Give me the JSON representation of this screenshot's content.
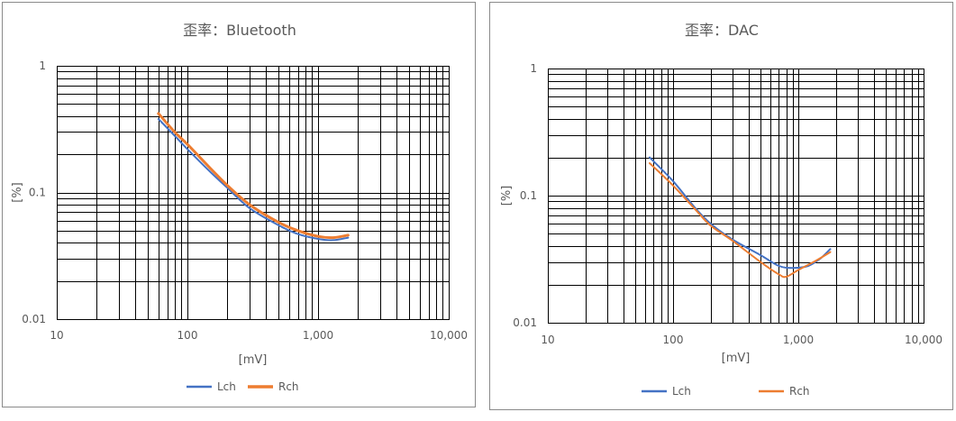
{
  "colors": {
    "lch": "#4472C4",
    "rch": "#ED7D31",
    "grid": "#000000",
    "text": "#595959"
  },
  "chart_data": [
    {
      "type": "line",
      "title": "歪率：Bluetooth",
      "xlabel": "[mV]",
      "ylabel": "[%]",
      "x_scale": "log",
      "y_scale": "log",
      "xlim": [
        10,
        10000
      ],
      "ylim": [
        0.01,
        1
      ],
      "x_tick_labels": [
        "10",
        "100",
        "1,000",
        "10,000"
      ],
      "y_tick_labels": [
        "0.01",
        "0.1",
        "1"
      ],
      "grid": true,
      "legend": "bottom",
      "series": [
        {
          "name": "Lch",
          "x": [
            60,
            80,
            100,
            150,
            200,
            300,
            500,
            700,
            1000,
            1300,
            1700
          ],
          "y": [
            0.38,
            0.28,
            0.22,
            0.145,
            0.11,
            0.075,
            0.055,
            0.047,
            0.043,
            0.042,
            0.044
          ]
        },
        {
          "name": "Rch",
          "x": [
            60,
            80,
            100,
            150,
            200,
            300,
            500,
            700,
            1000,
            1300,
            1700
          ],
          "y": [
            0.42,
            0.3,
            0.24,
            0.155,
            0.115,
            0.08,
            0.058,
            0.05,
            0.045,
            0.044,
            0.046
          ]
        }
      ]
    },
    {
      "type": "line",
      "title": "歪率：DAC",
      "xlabel": "[mV]",
      "ylabel": "[%]",
      "x_scale": "log",
      "y_scale": "log",
      "xlim": [
        10,
        10000
      ],
      "ylim": [
        0.01,
        1
      ],
      "x_tick_labels": [
        "10",
        "100",
        "1,000",
        "10,000"
      ],
      "y_tick_labels": [
        "0.01",
        "0.1",
        "1"
      ],
      "grid": true,
      "legend": "bottom",
      "series": [
        {
          "name": "Lch",
          "x": [
            65,
            100,
            150,
            200,
            300,
            500,
            700,
            900,
            1200,
            1500,
            1800
          ],
          "y": [
            0.2,
            0.13,
            0.08,
            0.06,
            0.045,
            0.034,
            0.028,
            0.027,
            0.028,
            0.032,
            0.038
          ]
        },
        {
          "name": "Rch",
          "x": [
            65,
            100,
            150,
            200,
            300,
            500,
            700,
            800,
            1000,
            1400,
            1800
          ],
          "y": [
            0.18,
            0.12,
            0.078,
            0.058,
            0.044,
            0.03,
            0.024,
            0.023,
            0.026,
            0.031,
            0.036
          ]
        }
      ]
    }
  ]
}
